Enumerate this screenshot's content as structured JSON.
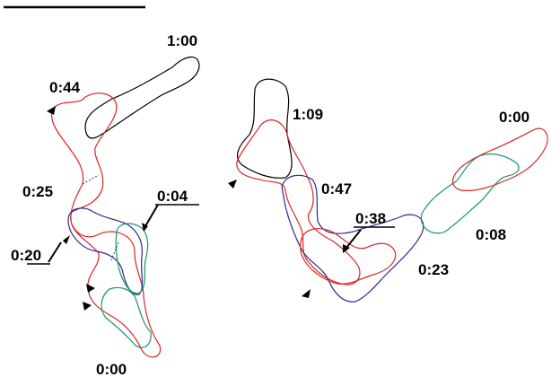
{
  "left_panel": {
    "labels": [
      "1:00",
      "0:44",
      "0:25",
      "0:04",
      "0:20",
      "0:00"
    ]
  },
  "right_panel": {
    "labels": [
      "1:09",
      "0:00",
      "0:47",
      "0:38",
      "0:08",
      "0:23"
    ]
  }
}
